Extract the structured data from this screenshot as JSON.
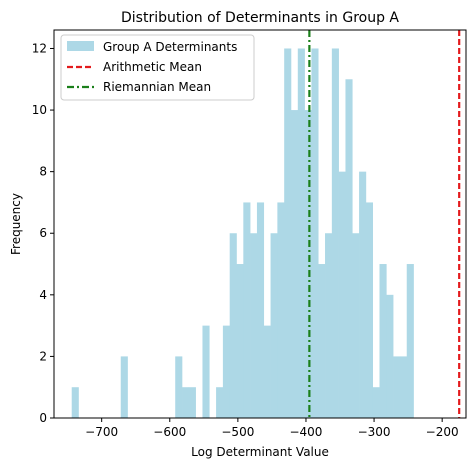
{
  "chart_data": {
    "type": "bar",
    "title": "Distribution of Determinants in Group A",
    "xlabel": "Log Determinant Value",
    "ylabel": "Frequency",
    "xlim": [
      -770,
      -165
    ],
    "ylim": [
      0,
      12.6
    ],
    "xticks": [
      -700,
      -600,
      -500,
      -400,
      -300,
      -200
    ],
    "xtick_labels": [
      "−700",
      "−600",
      "−500",
      "−400",
      "−300",
      "−200"
    ],
    "yticks": [
      0,
      2,
      4,
      6,
      8,
      10,
      12
    ],
    "ytick_labels": [
      "0",
      "2",
      "4",
      "6",
      "8",
      "10",
      "12"
    ],
    "grid": false,
    "legend_position": "upper-left",
    "series": [
      {
        "name": "Group A Determinants",
        "kind": "histogram",
        "color": "#add8e6",
        "bins": [
          {
            "x0": -744,
            "x1": -734,
            "count": 1
          },
          {
            "x0": -672,
            "x1": -662,
            "count": 2
          },
          {
            "x0": -592,
            "x1": -582,
            "count": 2
          },
          {
            "x0": -582,
            "x1": -572,
            "count": 1
          },
          {
            "x0": -572,
            "x1": -562,
            "count": 1
          },
          {
            "x0": -552,
            "x1": -542,
            "count": 3
          },
          {
            "x0": -532,
            "x1": -522,
            "count": 1
          },
          {
            "x0": -522,
            "x1": -512,
            "count": 3
          },
          {
            "x0": -512,
            "x1": -502,
            "count": 6
          },
          {
            "x0": -502,
            "x1": -492,
            "count": 5
          },
          {
            "x0": -492,
            "x1": -482,
            "count": 7
          },
          {
            "x0": -482,
            "x1": -472,
            "count": 6
          },
          {
            "x0": -472,
            "x1": -462,
            "count": 7
          },
          {
            "x0": -462,
            "x1": -452,
            "count": 3
          },
          {
            "x0": -452,
            "x1": -442,
            "count": 6
          },
          {
            "x0": -442,
            "x1": -432,
            "count": 7
          },
          {
            "x0": -432,
            "x1": -422,
            "count": 12
          },
          {
            "x0": -422,
            "x1": -412,
            "count": 10
          },
          {
            "x0": -412,
            "x1": -402,
            "count": 12
          },
          {
            "x0": -402,
            "x1": -392,
            "count": 10
          },
          {
            "x0": -392,
            "x1": -382,
            "count": 12
          },
          {
            "x0": -382,
            "x1": -372,
            "count": 5
          },
          {
            "x0": -372,
            "x1": -362,
            "count": 6
          },
          {
            "x0": -362,
            "x1": -352,
            "count": 12
          },
          {
            "x0": -352,
            "x1": -342,
            "count": 8
          },
          {
            "x0": -342,
            "x1": -332,
            "count": 11
          },
          {
            "x0": -332,
            "x1": -322,
            "count": 6
          },
          {
            "x0": -322,
            "x1": -312,
            "count": 8
          },
          {
            "x0": -312,
            "x1": -302,
            "count": 7
          },
          {
            "x0": -302,
            "x1": -292,
            "count": 1
          },
          {
            "x0": -292,
            "x1": -282,
            "count": 5
          },
          {
            "x0": -282,
            "x1": -272,
            "count": 4
          },
          {
            "x0": -272,
            "x1": -262,
            "count": 2
          },
          {
            "x0": -262,
            "x1": -252,
            "count": 2
          },
          {
            "x0": -252,
            "x1": -242,
            "count": 5
          }
        ]
      },
      {
        "name": "Arithmetic Mean",
        "kind": "vline",
        "x": -175,
        "color": "#e31a1c",
        "style": "dashed"
      },
      {
        "name": "Riemannian Mean",
        "kind": "vline",
        "x": -395,
        "color": "#1a7f1a",
        "style": "dashdot"
      }
    ]
  }
}
